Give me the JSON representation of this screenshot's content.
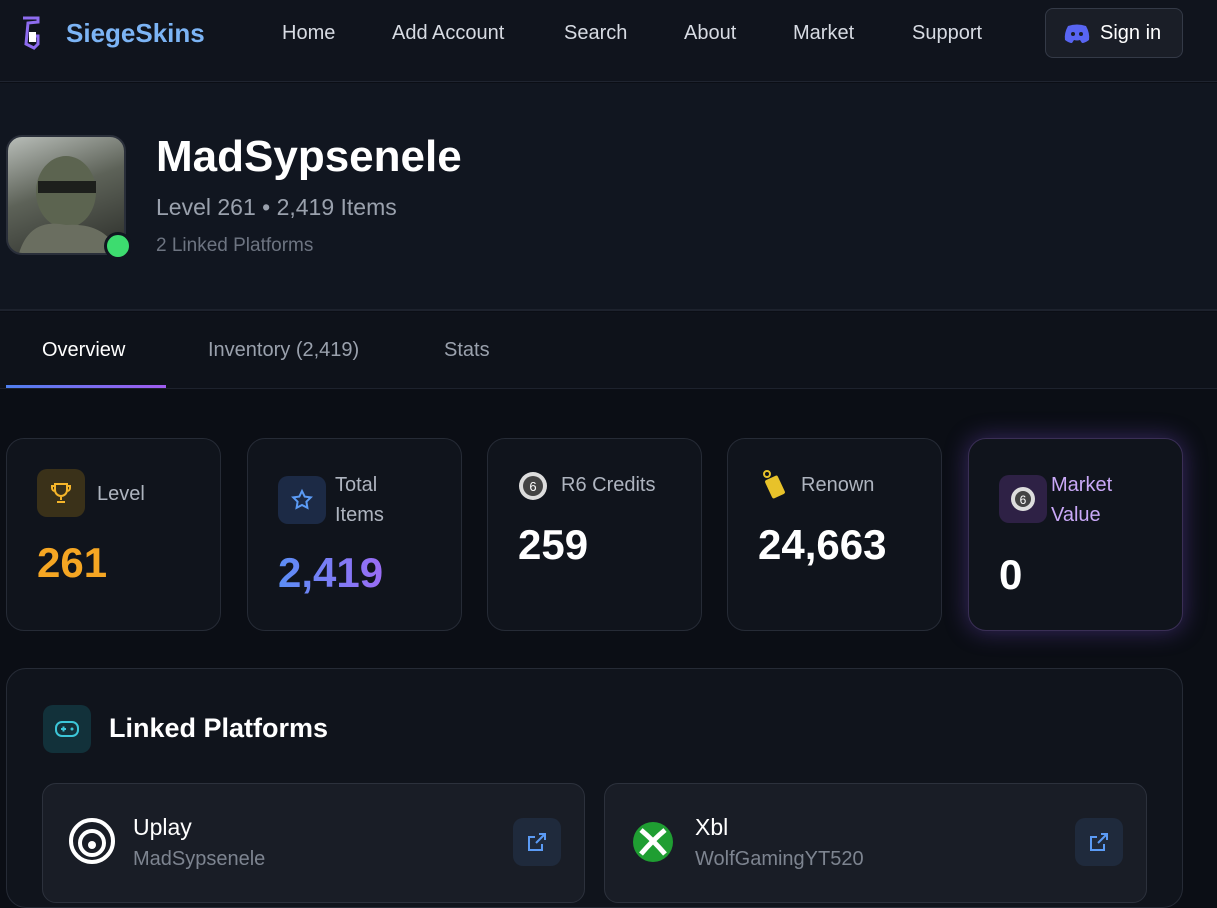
{
  "nav": {
    "brand": "SiegeSkins",
    "links": [
      "Home",
      "Add Account",
      "Search",
      "About",
      "Market",
      "Support"
    ],
    "signin": "Sign in"
  },
  "profile": {
    "name": "MadSypsenele",
    "summary": "Level 261 • 2,419 Items",
    "platforms": "2 Linked Platforms"
  },
  "tabs": [
    "Overview",
    "Inventory (2,419)",
    "Stats"
  ],
  "stats": [
    {
      "label": "Level",
      "value": "261"
    },
    {
      "label": "Total Items",
      "value": "2,419"
    },
    {
      "label": "R6 Credits",
      "value": "259"
    },
    {
      "label": "Renown",
      "value": "24,663"
    },
    {
      "label": "Market Value",
      "value": "0"
    }
  ],
  "linked": {
    "title": "Linked Platforms",
    "platforms": [
      {
        "name": "Uplay",
        "user": "MadSypsenele"
      },
      {
        "name": "Xbl",
        "user": "WolfGamingYT520"
      }
    ]
  }
}
